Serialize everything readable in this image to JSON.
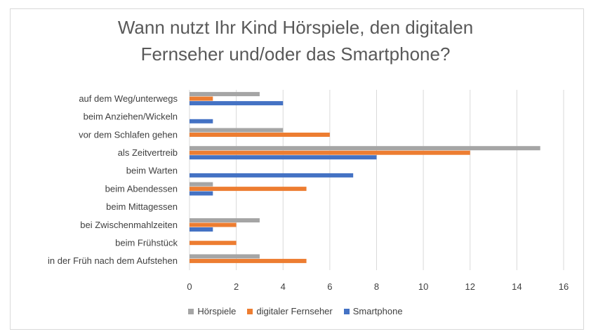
{
  "chart_data": {
    "type": "bar",
    "orientation": "horizontal",
    "title_lines": [
      "Wann nutzt Ihr Kind Hörspiele, den digitalen",
      "Fernseher und/oder das Smartphone?"
    ],
    "categories": [
      "auf dem Weg/unterwegs",
      "beim Anziehen/Wickeln",
      "vor dem Schlafen gehen",
      "als Zeitvertreib",
      "beim Warten",
      "beim Abendessen",
      "beim Mittagessen",
      "bei Zwischenmahlzeiten",
      "beim Frühstück",
      "in der Früh nach dem Aufstehen"
    ],
    "series": [
      {
        "name": "Hörspiele",
        "color": "#a5a5a5",
        "values": [
          3,
          0,
          4,
          15,
          0,
          1,
          0,
          3,
          0,
          3
        ]
      },
      {
        "name": "digitaler Fernseher",
        "color": "#ed7d31",
        "values": [
          1,
          0,
          6,
          12,
          0,
          5,
          0,
          2,
          2,
          5
        ]
      },
      {
        "name": "Smartphone",
        "color": "#4472c4",
        "values": [
          4,
          1,
          0,
          8,
          7,
          1,
          0,
          1,
          0,
          0
        ]
      }
    ],
    "xlim": [
      0,
      16
    ],
    "xticks": [
      "0",
      "2",
      "4",
      "6",
      "8",
      "10",
      "12",
      "14",
      "16"
    ],
    "grid": true,
    "legend_position": "bottom"
  }
}
